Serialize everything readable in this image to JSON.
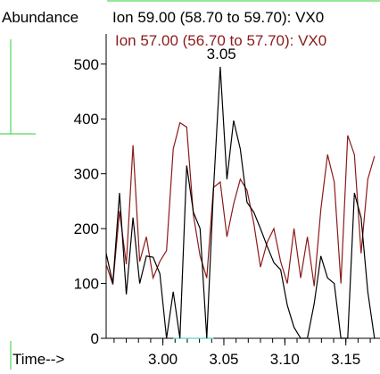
{
  "chart_data": {
    "type": "line",
    "ylabel": "Abundance",
    "xlabel": "Time-->",
    "xlim": [
      2.9535,
      3.178
    ],
    "ylim": [
      0,
      555
    ],
    "xticks": [
      3.0,
      3.05,
      3.1,
      3.15
    ],
    "xtick_labels": [
      "3.00",
      "3.05",
      "3.10",
      "3.15"
    ],
    "yticks": [
      0,
      100,
      200,
      300,
      400,
      500
    ],
    "ytick_labels": [
      "0",
      "100",
      "200",
      "300",
      "400",
      "500"
    ],
    "grid": false,
    "legend_placement": "top",
    "peak_annotation": {
      "text": "3.05",
      "x": 3.048,
      "y": 495
    },
    "series": [
      {
        "name": "Ion  59.00 (58.70 to 59.70): VX0",
        "color": "#000000",
        "x": [
          2.9535,
          2.959,
          2.9645,
          2.97,
          2.9755,
          2.981,
          2.9865,
          2.992,
          2.9975,
          3.003,
          3.0085,
          3.014,
          3.0195,
          3.025,
          3.0305,
          3.036,
          3.0415,
          3.047,
          3.0525,
          3.058,
          3.0635,
          3.069,
          3.0745,
          3.08,
          3.0855,
          3.091,
          3.0965,
          3.102,
          3.1075,
          3.113,
          3.1185,
          3.124,
          3.1295,
          3.135,
          3.1405,
          3.146,
          3.1515,
          3.157,
          3.1625,
          3.168,
          3.1735
        ],
        "values": [
          155,
          100,
          265,
          80,
          220,
          100,
          150,
          148,
          118,
          0,
          85,
          0,
          315,
          230,
          200,
          0,
          270,
          495,
          290,
          397,
          345,
          248,
          230,
          200,
          168,
          138,
          125,
          60,
          20,
          0,
          0,
          63,
          150,
          110,
          100,
          0,
          0,
          265,
          220,
          85,
          0
        ],
        "baseline_color": "#66cccc"
      },
      {
        "name": "Ion  57.00 (56.70 to 57.70): VX0",
        "color": "#8b1a1a",
        "x": [
          2.9535,
          2.959,
          2.9645,
          2.97,
          2.9755,
          2.981,
          2.9865,
          2.992,
          2.9975,
          3.003,
          3.0085,
          3.014,
          3.0195,
          3.025,
          3.0305,
          3.036,
          3.0415,
          3.047,
          3.0525,
          3.058,
          3.0635,
          3.069,
          3.0745,
          3.08,
          3.0855,
          3.091,
          3.0965,
          3.102,
          3.1075,
          3.113,
          3.1185,
          3.124,
          3.1295,
          3.135,
          3.1405,
          3.146,
          3.1515,
          3.157,
          3.1625,
          3.168,
          3.1735
        ],
        "values": [
          135,
          98,
          232,
          135,
          352,
          140,
          185,
          110,
          140,
          160,
          345,
          393,
          385,
          225,
          150,
          110,
          275,
          285,
          185,
          245,
          290,
          270,
          210,
          130,
          175,
          200,
          140,
          100,
          200,
          110,
          185,
          95,
          235,
          335,
          285,
          100,
          370,
          335,
          155,
          290,
          332
        ]
      }
    ]
  }
}
